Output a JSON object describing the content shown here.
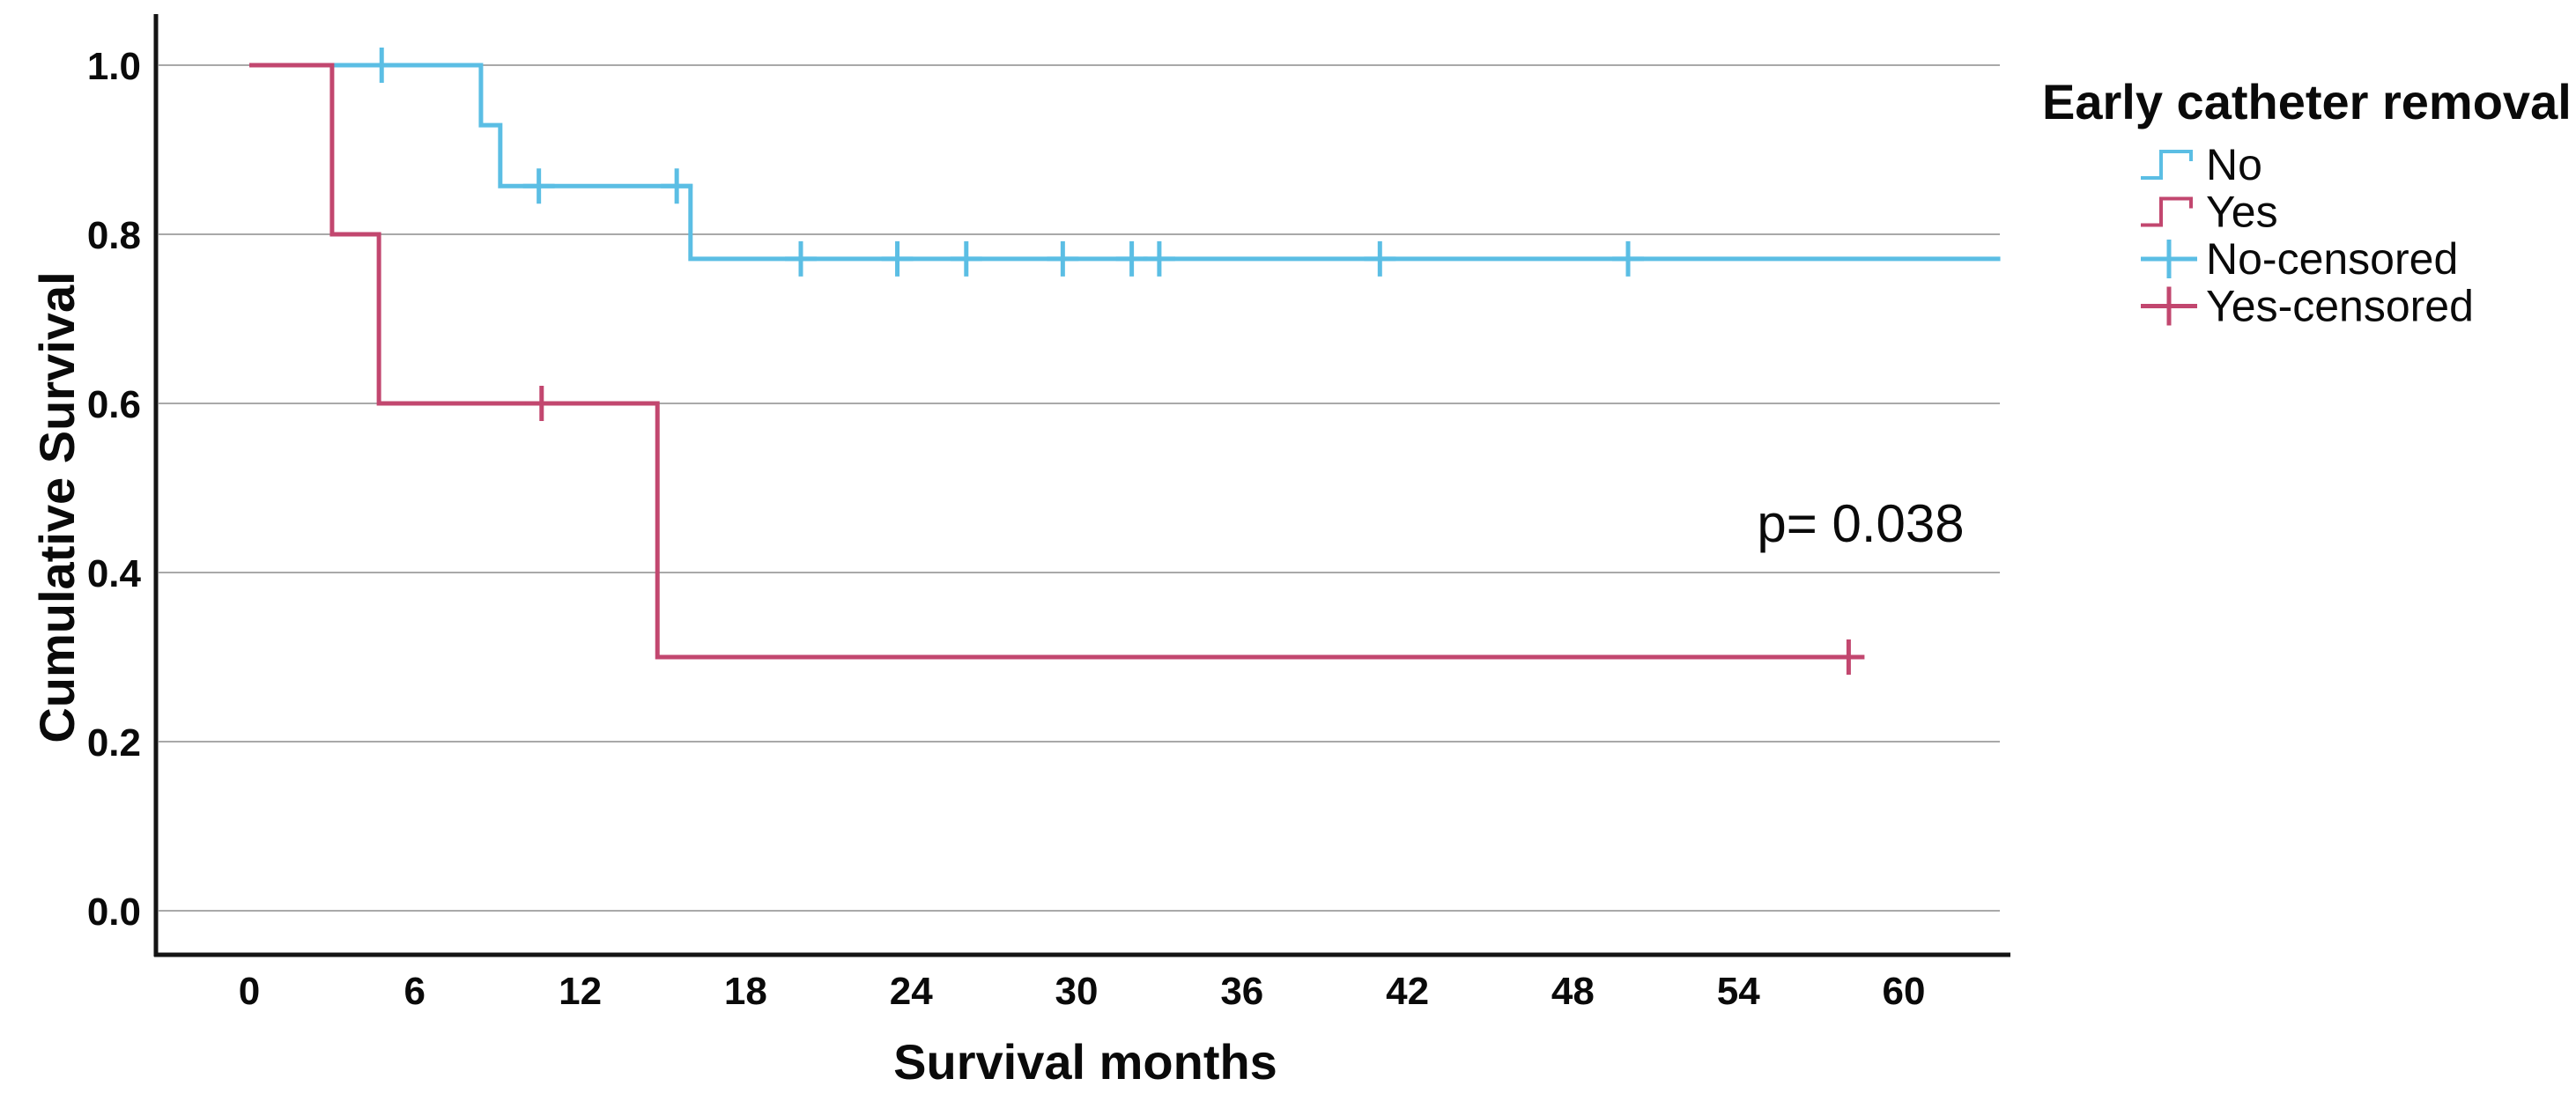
{
  "chart_data": {
    "type": "line",
    "subtype": "kaplan-meier-step-survival",
    "title": "",
    "xlabel": "Survival months",
    "ylabel": "Cumulative Survival",
    "annotation": "p= 0.038",
    "grid": "horizontal-only",
    "x_axis": {
      "ticks": [
        "0",
        "6",
        "12",
        "18",
        "24",
        "30",
        "36",
        "42",
        "48",
        "54",
        "60"
      ],
      "range": [
        0,
        60
      ],
      "display_max": 63.5
    },
    "y_axis": {
      "ticks": [
        "0.0",
        "0.2",
        "0.4",
        "0.6",
        "0.8",
        "1.0"
      ],
      "range": [
        0,
        1
      ]
    },
    "legend": {
      "title": "Early catheter removal",
      "position": "right-top",
      "items": [
        {
          "label": "No",
          "kind": "step",
          "color": "#5BBEE4"
        },
        {
          "label": "Yes",
          "kind": "step",
          "color": "#C2476F"
        },
        {
          "label": "No-censored",
          "kind": "plus",
          "color": "#5BBEE4"
        },
        {
          "label": "Yes-censored",
          "kind": "plus",
          "color": "#C2476F"
        }
      ]
    },
    "series": [
      {
        "name": "No",
        "color": "#5BBEE4",
        "steps": [
          [
            0,
            1.0
          ],
          [
            8.4,
            0.929
          ],
          [
            9.1,
            0.857
          ],
          [
            16,
            0.771
          ]
        ],
        "end_x": 63.5,
        "censored": [
          [
            4.8,
            1.0
          ],
          [
            10.5,
            0.857
          ],
          [
            15.5,
            0.857
          ],
          [
            20,
            0.771
          ],
          [
            23.5,
            0.771
          ],
          [
            26,
            0.771
          ],
          [
            29.5,
            0.771
          ],
          [
            32,
            0.771
          ],
          [
            33,
            0.771
          ],
          [
            41,
            0.771
          ],
          [
            50,
            0.771
          ]
        ]
      },
      {
        "name": "Yes",
        "color": "#C2476F",
        "steps": [
          [
            0,
            1.0
          ],
          [
            3,
            0.8
          ],
          [
            4.7,
            0.6
          ],
          [
            14.8,
            0.3
          ]
        ],
        "end_x": 58.4,
        "censored": [
          [
            10.6,
            0.6
          ],
          [
            58,
            0.3
          ]
        ]
      }
    ],
    "colors": {
      "grid": "#A9A9A9",
      "axis": "#141414",
      "text": "#0a0a0a"
    }
  }
}
